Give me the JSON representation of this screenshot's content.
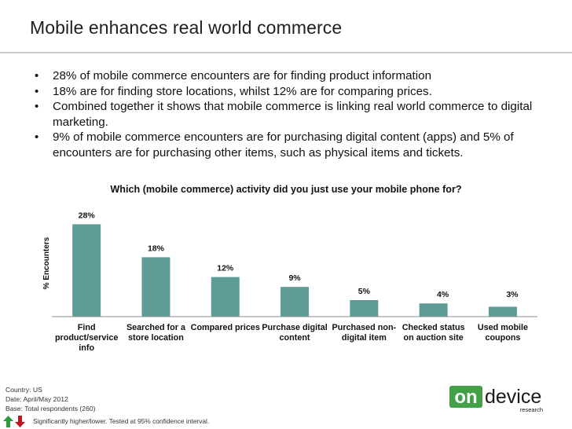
{
  "slide": {
    "title": "Mobile enhances real world commerce",
    "bullets": [
      "28% of mobile commerce encounters are for finding product information",
      "18% are for finding store locations, whilst 12% are for comparing prices.",
      "Combined together it shows that mobile commerce is linking real world commerce to digital marketing.",
      "9% of mobile commerce encounters are for purchasing digital content (apps) and 5% of encounters are for purchasing other items, such as physical items and tickets."
    ]
  },
  "chart_data": {
    "type": "bar",
    "title": "Which (mobile commerce) activity did you just use your mobile phone for?",
    "ylabel": "% Encounters",
    "xlabel": "",
    "ylim": [
      0,
      30
    ],
    "grid": false,
    "legend": "none",
    "bar_color": "#5f9c98",
    "categories": [
      [
        "Find",
        "product/service",
        "info"
      ],
      [
        "Searched for a",
        "store location"
      ],
      [
        "Compared prices"
      ],
      [
        "Purchase digital",
        "content"
      ],
      [
        "Purchased non-",
        "digital item"
      ],
      [
        "Checked status",
        "on auction site"
      ],
      [
        "Used mobile",
        "coupons"
      ]
    ],
    "values": [
      28,
      18,
      12,
      9,
      5,
      4,
      3
    ],
    "value_labels": [
      "28%",
      "18%",
      "12%",
      "9%",
      "5%",
      "4%",
      "3%"
    ]
  },
  "footer": {
    "country": "Country: US",
    "date": "Date: April/May 2012",
    "base": "Base: Total respondents (260)",
    "significance_note": "Significantly higher/lower. Tested at 95% confidence interval.",
    "up_arrow_color": "#2e9b3e",
    "down_arrow_color": "#c0161c"
  },
  "logo": {
    "on_text": "on",
    "device_text": "device",
    "research_text": "research",
    "on_color": "#43a047",
    "device_color": "#1a1a1a"
  }
}
